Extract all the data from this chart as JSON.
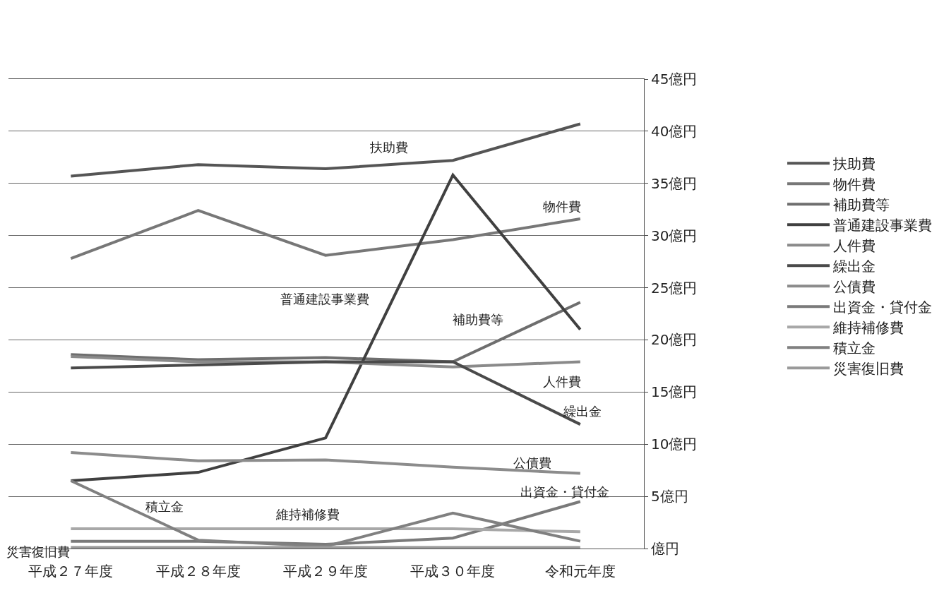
{
  "chart_data": {
    "type": "line",
    "categories": [
      "平成２７年度",
      "平成２８年度",
      "平成２９年度",
      "平成３０年度",
      "令和元年度"
    ],
    "series": [
      {
        "name": "扶助費",
        "color": "#555555",
        "values": [
          35.7,
          36.8,
          36.4,
          37.2,
          40.7
        ]
      },
      {
        "name": "物件費",
        "color": "#777777",
        "values": [
          27.8,
          32.4,
          28.1,
          29.6,
          31.6
        ]
      },
      {
        "name": "補助費等",
        "color": "#6e6e6e",
        "values": [
          18.6,
          18.1,
          18.3,
          17.9,
          23.6
        ]
      },
      {
        "name": "普通建設事業費",
        "color": "#404040",
        "values": [
          6.5,
          7.3,
          10.6,
          35.8,
          21.0
        ]
      },
      {
        "name": "人件費",
        "color": "#8a8a8a",
        "values": [
          18.4,
          17.9,
          17.9,
          17.4,
          17.9
        ]
      },
      {
        "name": "繰出金",
        "color": "#4a4a4a",
        "values": [
          17.3,
          17.6,
          17.9,
          17.9,
          11.9
        ]
      },
      {
        "name": "公債費",
        "color": "#8c8c8c",
        "values": [
          9.2,
          8.4,
          8.5,
          7.8,
          7.2
        ]
      },
      {
        "name": "出資金・貸付金",
        "color": "#7a7a7a",
        "values": [
          0.7,
          0.7,
          0.4,
          1.0,
          4.5
        ]
      },
      {
        "name": "維持補修費",
        "color": "#a8a8a8",
        "values": [
          1.9,
          1.9,
          1.9,
          1.9,
          1.6
        ]
      },
      {
        "name": "積立金",
        "color": "#808080",
        "values": [
          6.5,
          0.8,
          0.2,
          3.4,
          0.7
        ]
      },
      {
        "name": "災害復旧費",
        "color": "#9a9a9a",
        "values": [
          0.1,
          0.1,
          0.1,
          0.1,
          0.1
        ]
      }
    ],
    "ylim": [
      0,
      45
    ],
    "yticks": [
      {
        "value": 0,
        "label": "億円"
      },
      {
        "value": 5,
        "label": "5億円"
      },
      {
        "value": 10,
        "label": "10億円"
      },
      {
        "value": 15,
        "label": "15億円"
      },
      {
        "value": 20,
        "label": "20億円"
      },
      {
        "value": 25,
        "label": "25億円"
      },
      {
        "value": 30,
        "label": "30億円"
      },
      {
        "value": 35,
        "label": "35億円"
      },
      {
        "value": 40,
        "label": "40億円"
      },
      {
        "value": 45,
        "label": "45億円"
      }
    ],
    "grid": "y",
    "legend": "right",
    "marker": "none",
    "line_style": "solid",
    "annotations": [
      "扶助費",
      "物件費",
      "普通建設事業費",
      "補助費等",
      "人件費",
      "繰出金",
      "公債費",
      "出資金・貸付金",
      "積立金",
      "維持補修費",
      "災害復旧費"
    ]
  }
}
